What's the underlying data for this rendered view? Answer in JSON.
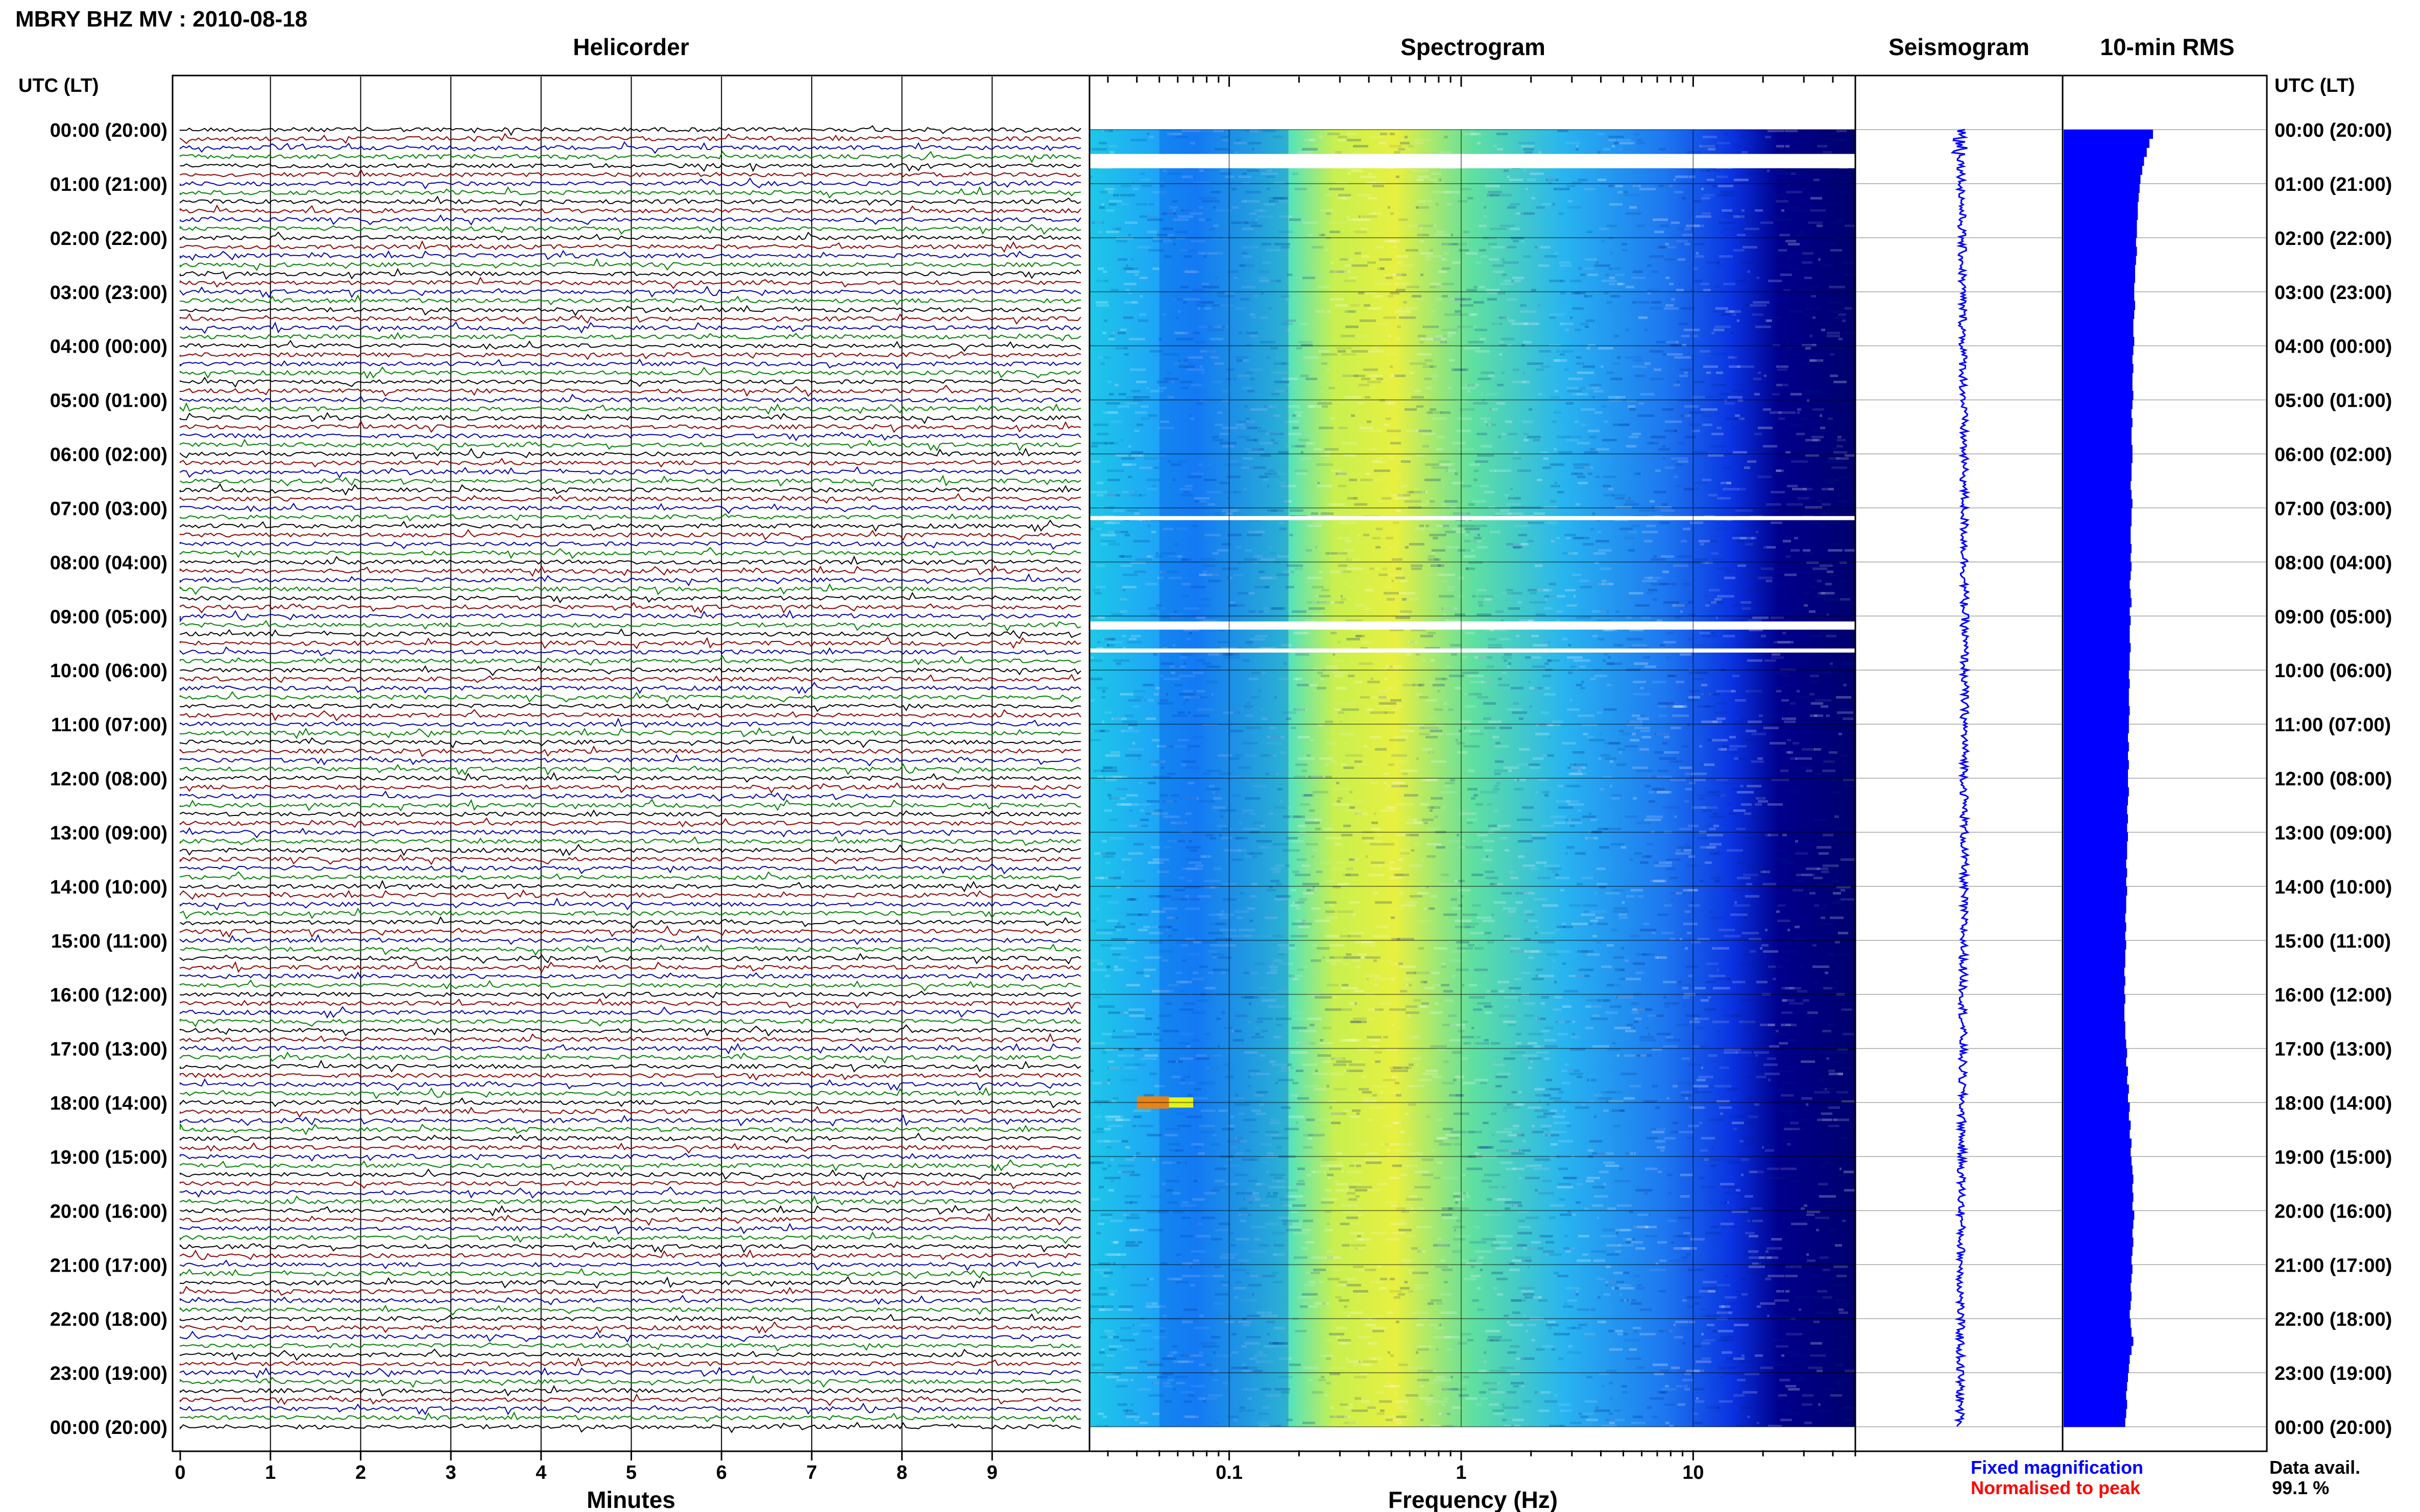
{
  "title": "MBRY BHZ MV : 2010-08-18",
  "panels": {
    "helicorder": "Helicorder",
    "spectrogram": "Spectrogram",
    "seismogram": "Seismogram",
    "rms": "10-min RMS"
  },
  "time_axis_label": "UTC (LT)",
  "time_labels": [
    "00:00 (20:00)",
    "01:00 (21:00)",
    "02:00 (22:00)",
    "03:00 (23:00)",
    "04:00 (00:00)",
    "05:00 (01:00)",
    "06:00 (02:00)",
    "07:00 (03:00)",
    "08:00 (04:00)",
    "09:00 (05:00)",
    "10:00 (06:00)",
    "11:00 (07:00)",
    "12:00 (08:00)",
    "13:00 (09:00)",
    "14:00 (10:00)",
    "15:00 (11:00)",
    "16:00 (12:00)",
    "17:00 (13:00)",
    "18:00 (14:00)",
    "19:00 (15:00)",
    "20:00 (16:00)",
    "21:00 (17:00)",
    "22:00 (18:00)",
    "23:00 (19:00)",
    "00:00 (20:00)"
  ],
  "legend": {
    "fixed": "Fixed magnification",
    "normalised": "Normalised to peak",
    "fixed_color": "#0000ff",
    "normalised_color": "#ff0000"
  },
  "data_avail_label": "Data avail.",
  "data_avail_value": "99.1 %",
  "chart_data": [
    {
      "type": "line",
      "name": "helicorder",
      "title": "Helicorder",
      "xlabel": "Minutes",
      "x_ticks": [
        "0",
        "1",
        "2",
        "3",
        "4",
        "5",
        "6",
        "7",
        "8",
        "9"
      ],
      "xlim": [
        0,
        10
      ],
      "rows_per_hour": 6,
      "trace_colors": [
        "#000000",
        "#8b0000",
        "#0000aa",
        "#008000"
      ]
    },
    {
      "type": "heatmap",
      "name": "spectrogram",
      "title": "Spectrogram",
      "xlabel": "Frequency (Hz)",
      "x_scale": "log",
      "x_ticks": [
        "0.1",
        "1",
        "10"
      ],
      "xlim": [
        0.025,
        50
      ],
      "colormap": [
        "#00007f",
        "#0000ff",
        "#0080ff",
        "#00ffff",
        "#80ff80",
        "#ffff00",
        "#ff8000",
        "#ff0000"
      ]
    },
    {
      "type": "line",
      "name": "seismogram",
      "title": "Seismogram",
      "color": "#0000ff"
    },
    {
      "type": "bar",
      "name": "rms",
      "title": "10-min RMS",
      "color": "#0000ff",
      "orientation": "horizontal",
      "values": [
        1.0,
        0.96,
        0.93,
        0.9,
        0.88,
        0.86,
        0.85,
        0.84,
        0.83,
        0.83,
        0.82,
        0.82,
        0.81,
        0.82,
        0.81,
        0.8,
        0.8,
        0.79,
        0.79,
        0.8,
        0.79,
        0.78,
        0.78,
        0.79,
        0.78,
        0.77,
        0.78,
        0.77,
        0.77,
        0.78,
        0.77,
        0.76,
        0.77,
        0.76,
        0.76,
        0.77,
        0.77,
        0.76,
        0.76,
        0.75,
        0.76,
        0.77,
        0.76,
        0.76,
        0.75,
        0.75,
        0.76,
        0.75,
        0.76,
        0.75,
        0.74,
        0.75,
        0.76,
        0.74,
        0.75,
        0.74,
        0.74,
        0.75,
        0.74,
        0.74,
        0.73,
        0.74,
        0.73,
        0.73,
        0.74,
        0.73,
        0.73,
        0.72,
        0.73,
        0.72,
        0.73,
        0.72,
        0.72,
        0.73,
        0.72,
        0.71,
        0.72,
        0.71,
        0.72,
        0.71,
        0.71,
        0.7,
        0.71,
        0.7,
        0.71,
        0.7,
        0.7,
        0.69,
        0.7,
        0.69,
        0.7,
        0.69,
        0.69,
        0.68,
        0.69,
        0.68,
        0.69,
        0.68,
        0.68,
        0.69,
        0.69,
        0.7,
        0.71,
        0.7,
        0.72,
        0.71,
        0.73,
        0.72,
        0.74,
        0.73,
        0.75,
        0.74,
        0.76,
        0.75,
        0.76,
        0.77,
        0.78,
        0.77,
        0.78,
        0.77,
        0.79,
        0.78,
        0.77,
        0.78,
        0.77,
        0.76,
        0.77,
        0.76,
        0.75,
        0.76,
        0.75,
        0.74,
        0.75,
        0.76,
        0.78,
        0.76,
        0.74,
        0.73,
        0.72,
        0.71,
        0.7,
        0.71,
        0.7,
        0.69
      ]
    }
  ]
}
